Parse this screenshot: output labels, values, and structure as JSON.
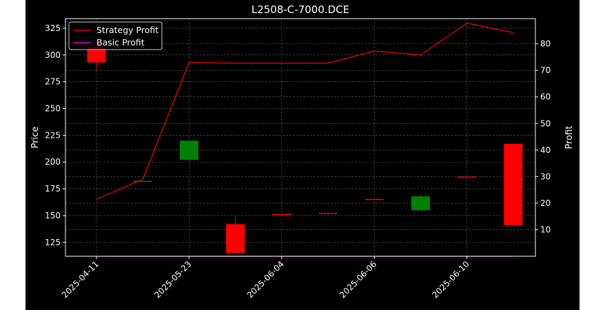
{
  "chart_data": {
    "type": "candlestick+line",
    "title": "L2508-C-7000.DCE",
    "ylabel_left": "Price",
    "ylabel_right": "Profit",
    "y_left_lim": [
      112,
      334
    ],
    "y_right_lim": [
      0,
      89.5
    ],
    "y_left_ticks": [
      125,
      150,
      175,
      200,
      225,
      250,
      275,
      300,
      325
    ],
    "y_right_ticks": [
      10,
      20,
      30,
      40,
      50,
      60,
      70,
      80
    ],
    "x_tick_labels": [
      "2025-04-11",
      "2025-05-23",
      "2025-06-04",
      "2025-06-06",
      "2025-06-10"
    ],
    "x_tick_indices": [
      0,
      2,
      4,
      6,
      8
    ],
    "grid": true,
    "legend": {
      "placement": "top-left",
      "entries": [
        "Strategy Profit",
        "Basic Profit"
      ]
    },
    "colors": {
      "up": "#008000",
      "down": "#ff0000",
      "strategy": "#ff0000",
      "basic": "#ff00ff",
      "background": "#000000",
      "foreground": "#ffffff"
    },
    "candles": [
      {
        "open": 308,
        "close": 293,
        "high": 308,
        "low": 286
      },
      {
        "open": 182,
        "close": 182,
        "high": 182,
        "low": 182
      },
      {
        "open": 202,
        "close": 220,
        "high": 220,
        "low": 202
      },
      {
        "open": 142,
        "close": 115,
        "high": 149,
        "low": 115
      },
      {
        "open": 151,
        "close": 151,
        "high": 151,
        "low": 151
      },
      {
        "open": 152,
        "close": 152,
        "high": 152,
        "low": 152
      },
      {
        "open": 165,
        "close": 165,
        "high": 165,
        "low": 165
      },
      {
        "open": 155,
        "close": 168,
        "high": 169,
        "low": 155
      },
      {
        "open": 186,
        "close": 186,
        "high": 186,
        "low": 186
      },
      {
        "open": 217,
        "close": 141,
        "high": 217,
        "low": 141
      }
    ],
    "series": [
      {
        "name": "Strategy Profit",
        "axis": "right",
        "values": [
          21.5,
          29,
          73,
          72.7,
          72.7,
          72.7,
          77.3,
          75.8,
          87.8,
          84.2
        ]
      },
      {
        "name": "Basic Profit",
        "axis": "right",
        "values": [
          0,
          0,
          0,
          0,
          0,
          0,
          0,
          0,
          0,
          0
        ]
      }
    ]
  }
}
